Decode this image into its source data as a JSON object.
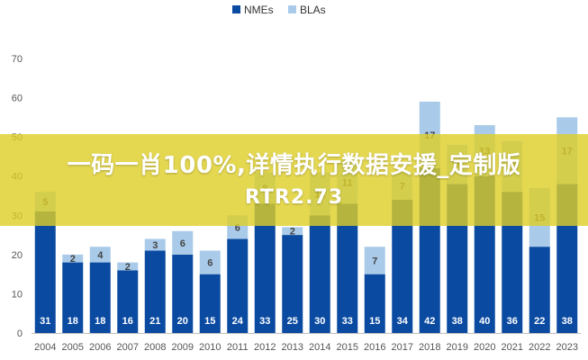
{
  "chart_data": {
    "type": "bar",
    "stacked": true,
    "title": "",
    "xlabel": "",
    "ylabel": "",
    "ylim": [
      0,
      70
    ],
    "yticks": [
      0,
      10,
      20,
      30,
      40,
      50,
      60,
      70
    ],
    "grid": false,
    "legend": "top-center",
    "categories": [
      "2004",
      "2005",
      "2006",
      "2007",
      "2008",
      "2009",
      "2010",
      "2011",
      "2012",
      "2013",
      "2014",
      "2015",
      "2016",
      "2017",
      "2018",
      "2019",
      "2020",
      "2021",
      "2022",
      "2023"
    ],
    "series": [
      {
        "name": "NMEs",
        "color": "#0a4aa1",
        "values": [
          31,
          18,
          18,
          16,
          21,
          20,
          15,
          24,
          33,
          25,
          30,
          33,
          15,
          34,
          42,
          38,
          40,
          36,
          22,
          38
        ]
      },
      {
        "name": "BLAs",
        "color": "#a9cbe9",
        "values": [
          5,
          2,
          4,
          2,
          3,
          6,
          6,
          6,
          8,
          2,
          11,
          11,
          7,
          7,
          17,
          10,
          13,
          13,
          15,
          17
        ]
      }
    ]
  },
  "overlay": {
    "line1": "一码一肖100%,详情执行数据安援_定制版",
    "line2": "RTR2.73"
  }
}
